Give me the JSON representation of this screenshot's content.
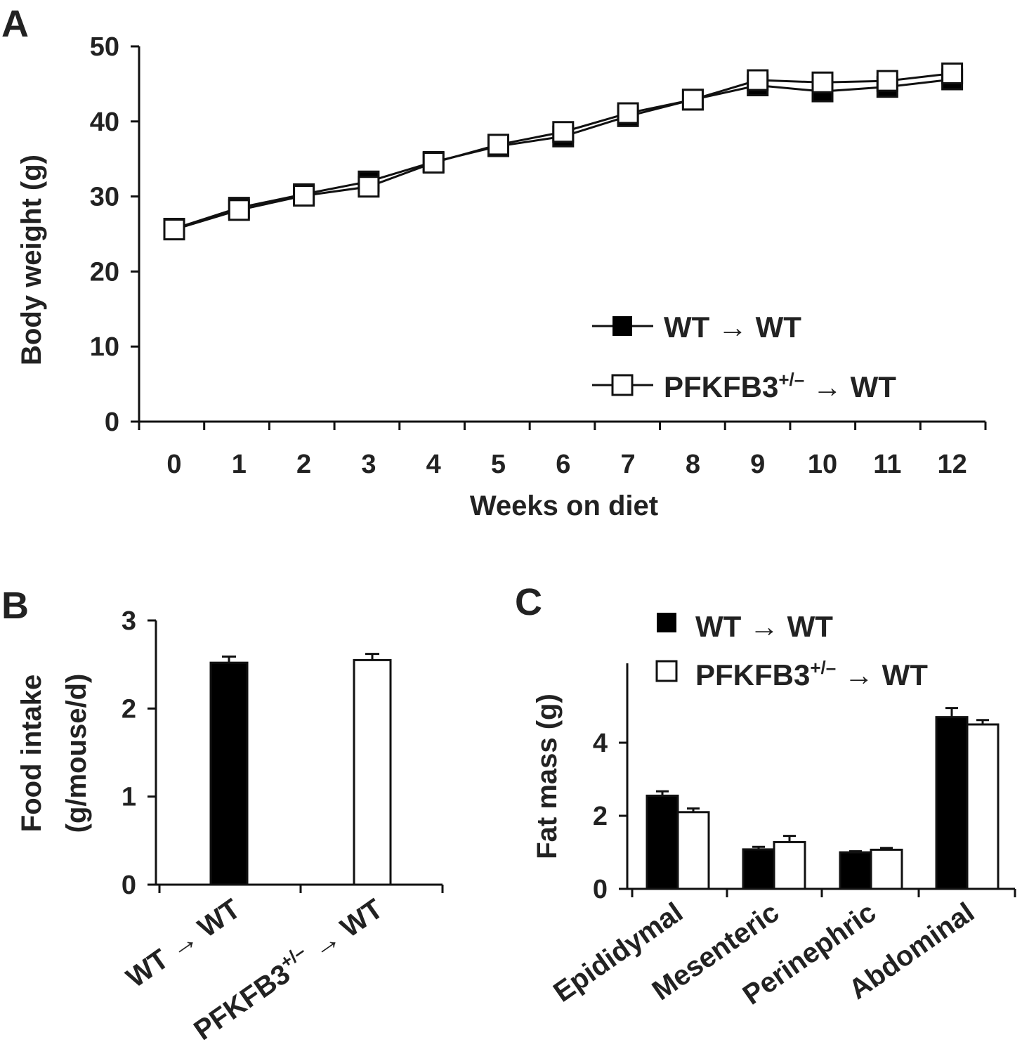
{
  "colors": {
    "ink": "#111111",
    "open_fill": "#ffffff",
    "filled": "#000000"
  },
  "legend_labels": {
    "wt_left": "WT",
    "wt_right": "WT",
    "pf_base": "PFKFB3",
    "pf_sup": "+/–",
    "pf_right": "WT",
    "arrow": "→"
  },
  "chart_data": [
    {
      "panel": "A",
      "type": "line",
      "title": "",
      "xlabel": "Weeks on diet",
      "ylabel": "Body weight (g)",
      "x": [
        0,
        1,
        2,
        3,
        4,
        5,
        6,
        7,
        8,
        9,
        10,
        11,
        12
      ],
      "xticks": [
        "0",
        "1",
        "2",
        "3",
        "4",
        "5",
        "6",
        "7",
        "8",
        "9",
        "10",
        "11",
        "12"
      ],
      "ylim": [
        0,
        50
      ],
      "yticks": [
        "0",
        "10",
        "20",
        "30",
        "40",
        "50"
      ],
      "legend_position": "bottom-right",
      "series": [
        {
          "name": "WT → WT",
          "marker": "filled-square",
          "values": [
            25.7,
            28.5,
            30.3,
            32.0,
            34.6,
            36.7,
            38.0,
            40.7,
            42.9,
            44.8,
            44.0,
            44.6,
            45.6
          ]
        },
        {
          "name": "PFKFB3+/– → WT",
          "marker": "open-square",
          "values": [
            25.6,
            28.2,
            30.1,
            31.3,
            34.5,
            36.9,
            38.6,
            41.1,
            42.9,
            45.5,
            45.2,
            45.4,
            46.4
          ]
        }
      ]
    },
    {
      "panel": "B",
      "type": "bar",
      "title": "",
      "xlabel": "",
      "ylabel_line1": "Food intake",
      "ylabel_line2": "(g/mouse/d)",
      "categories": [
        "WT → WT",
        "PFKFB3+/– → WT"
      ],
      "values": [
        2.52,
        2.55
      ],
      "errors": [
        0.07,
        0.07
      ],
      "fills": [
        "filled",
        "open"
      ],
      "ylim": [
        0,
        3
      ],
      "yticks": [
        "0",
        "1",
        "2",
        "3"
      ]
    },
    {
      "panel": "C",
      "type": "bar",
      "title": "",
      "xlabel": "",
      "ylabel": "Fat mass (g)",
      "categories": [
        "Epididymal",
        "Mesenteric",
        "Perinephric",
        "Abdominal"
      ],
      "ylim": [
        0,
        6
      ],
      "yticks": [
        "0",
        "2",
        "4"
      ],
      "legend_position": "top-left",
      "series": [
        {
          "name": "WT → WT",
          "fill": "filled",
          "values": [
            2.55,
            1.08,
            1.0,
            4.7
          ],
          "errors": [
            0.12,
            0.07,
            0.03,
            0.25
          ]
        },
        {
          "name": "PFKFB3+/– → WT",
          "fill": "open",
          "values": [
            2.1,
            1.28,
            1.07,
            4.5
          ],
          "errors": [
            0.1,
            0.17,
            0.05,
            0.12
          ]
        }
      ]
    }
  ]
}
